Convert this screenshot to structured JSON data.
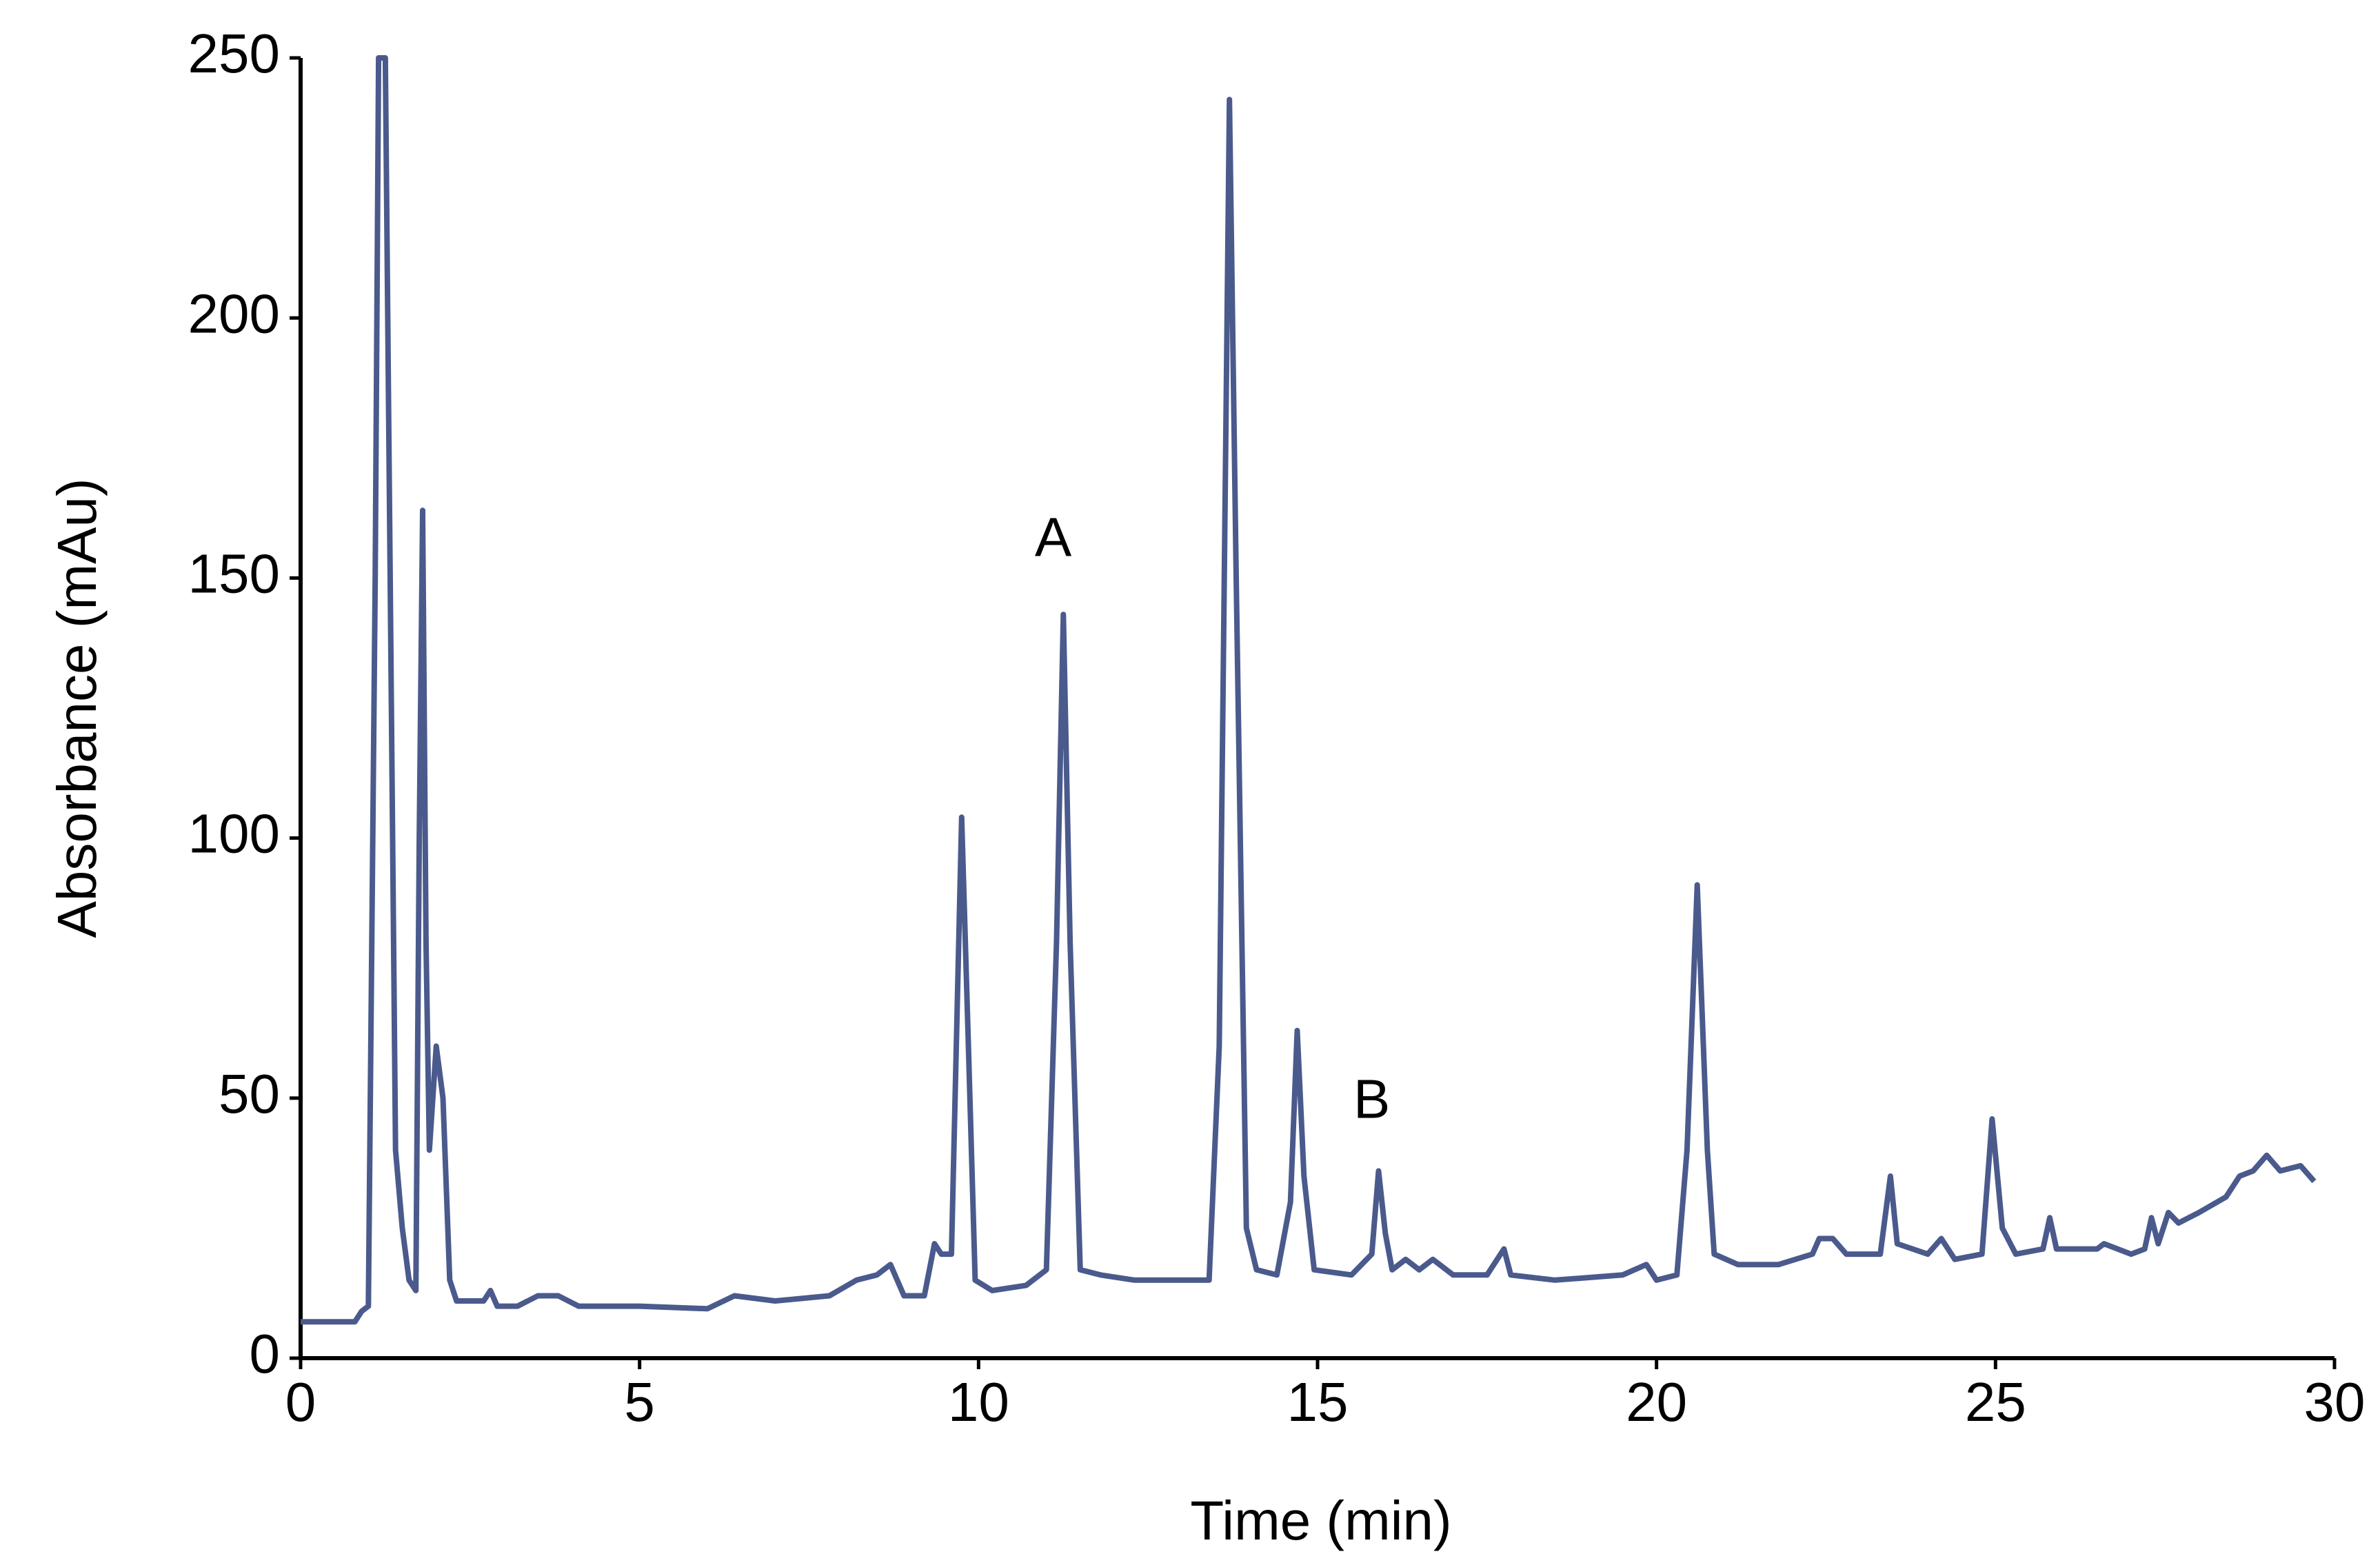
{
  "chart_data": {
    "type": "line",
    "xlabel": "Time (min)",
    "ylabel": "Absorbance (mAu)",
    "x": [
      0,
      0.8,
      0.9,
      1.0,
      1.1,
      1.15,
      1.25,
      1.3,
      1.4,
      1.5,
      1.6,
      1.7,
      1.75,
      1.8,
      1.85,
      1.9,
      2.0,
      2.1,
      2.2,
      2.3,
      2.7,
      2.8,
      2.9,
      3.2,
      3.5,
      3.8,
      4.1,
      5,
      6,
      6.4,
      7,
      7.8,
      8.2,
      8.5,
      8.7,
      8.9,
      9.2,
      9.35,
      9.45,
      9.6,
      9.75,
      9.85,
      9.95,
      10.2,
      10.7,
      11.0,
      11.15,
      11.25,
      11.35,
      11.5,
      11.8,
      12.3,
      13,
      13.4,
      13.55,
      13.7,
      13.8,
      13.95,
      14.1,
      14.4,
      14.6,
      14.7,
      14.8,
      14.95,
      15.5,
      15.8,
      15.9,
      16.0,
      16.1,
      16.3,
      16.5,
      16.7,
      17,
      17.5,
      17.75,
      17.85,
      18.5,
      19.5,
      19.85,
      20,
      20.3,
      20.45,
      20.6,
      20.75,
      20.85,
      21.2,
      21.8,
      22.3,
      22.4,
      22.6,
      22.8,
      23.3,
      23.45,
      23.55,
      24,
      24.2,
      24.4,
      24.8,
      24.95,
      25.1,
      25.3,
      25.7,
      25.8,
      25.9,
      26.5,
      26.6,
      27,
      27.2,
      27.3,
      27.4,
      27.55,
      27.7,
      28,
      28.4,
      28.6,
      28.8,
      29,
      29.2,
      29.5,
      29.7
    ],
    "values": [
      7,
      7,
      9,
      10,
      150,
      250,
      250,
      180,
      40,
      25,
      15,
      13,
      100,
      163,
      80,
      40,
      60,
      50,
      15,
      11,
      11,
      13,
      10,
      10,
      12,
      12,
      10,
      10,
      9.5,
      12,
      11,
      12,
      15,
      16,
      18,
      12,
      12,
      22,
      20,
      20,
      104,
      60,
      15,
      13,
      14,
      17,
      80,
      143,
      80,
      17,
      16,
      15,
      15,
      15,
      60,
      242,
      150,
      25,
      17,
      16,
      30,
      63,
      35,
      17,
      16,
      20,
      36,
      24,
      17,
      19,
      17,
      19,
      16,
      16,
      21,
      16,
      15,
      16,
      18,
      15,
      16,
      40,
      91,
      40,
      20,
      18,
      18,
      20,
      23,
      23,
      20,
      20,
      35,
      22,
      20,
      23,
      19,
      20,
      46,
      25,
      20,
      21,
      27,
      21,
      21,
      22,
      20,
      21,
      27,
      22,
      28,
      26,
      28,
      31,
      35,
      36,
      39,
      36,
      37,
      34
    ],
    "color": "#4b5a8c",
    "xlim": [
      0,
      30
    ],
    "xticks": [
      0,
      5,
      10,
      15,
      20,
      25,
      30
    ],
    "ylim": [
      0,
      250
    ],
    "yticks": [
      0,
      50,
      100,
      150,
      200,
      250
    ],
    "annotations": [
      {
        "text": "A",
        "x": 11.1,
        "y": 157
      },
      {
        "text": "B",
        "x": 15.8,
        "y": 49
      }
    ]
  }
}
